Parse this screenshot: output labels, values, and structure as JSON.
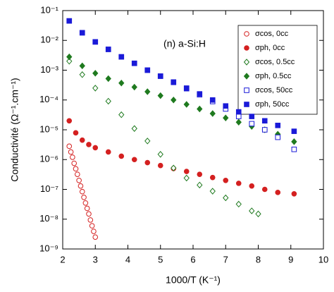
{
  "chart_data": {
    "type": "scatter",
    "annotation": "(n) a-Si:H",
    "x_label": "1000/T (K⁻¹)",
    "y_label": "Conductivité (Ω⁻¹.cm⁻¹)",
    "log_y": true,
    "legend": "upper right",
    "xlim": [
      2,
      10
    ],
    "xticks": [
      2,
      3,
      4,
      5,
      6,
      7,
      8,
      9,
      10
    ],
    "ylim": [
      1e-09,
      0.1
    ],
    "yticks": [
      {
        "value": 0.1,
        "label": "10⁻¹"
      },
      {
        "value": 0.01,
        "label": "10⁻²"
      },
      {
        "value": 0.001,
        "label": "10⁻³"
      },
      {
        "value": 0.0001,
        "label": "10⁻⁴"
      },
      {
        "value": 1e-05,
        "label": "10⁻⁵"
      },
      {
        "value": 1e-06,
        "label": "10⁻⁶"
      },
      {
        "value": 1e-07,
        "label": "10⁻⁷"
      },
      {
        "value": 1e-08,
        "label": "10⁻⁸"
      },
      {
        "value": 1e-09,
        "label": "10⁻⁹"
      }
    ],
    "series": [
      {
        "name": "σcos, 0cc",
        "color": "#d42020",
        "marker": "circle",
        "filled": false,
        "x": [
          2.2,
          2.25,
          2.3,
          2.35,
          2.4,
          2.45,
          2.5,
          2.55,
          2.6,
          2.65,
          2.7,
          2.75,
          2.8,
          2.85,
          2.9,
          2.95,
          3.0
        ],
        "values": [
          2.8e-06,
          1.8e-06,
          1.2e-06,
          7.5e-07,
          4.9e-07,
          3.2e-07,
          2e-07,
          1.3e-07,
          8.4e-08,
          5.4e-08,
          3.5e-08,
          2.3e-08,
          1.5e-08,
          9.4e-09,
          6e-09,
          3.9e-09,
          2.5e-09
        ]
      },
      {
        "name": "σph, 0cc",
        "color": "#d42020",
        "marker": "circle",
        "filled": true,
        "x": [
          2.2,
          2.4,
          2.6,
          2.8,
          3.0,
          3.4,
          3.8,
          4.2,
          4.6,
          5.0,
          5.4,
          5.8,
          6.2,
          6.6,
          7.0,
          7.4,
          7.8,
          8.2,
          8.6,
          9.1
        ],
        "values": [
          2e-05,
          7.9e-06,
          4.5e-06,
          3.2e-06,
          2.5e-06,
          1.8e-06,
          1.3e-06,
          1e-06,
          7.9e-07,
          6.3e-07,
          5e-07,
          4e-07,
          3.2e-07,
          2.5e-07,
          2e-07,
          1.6e-07,
          1.3e-07,
          1e-07,
          7.9e-08,
          7.1e-08
        ]
      },
      {
        "name": "σcos, 0.5cc",
        "color": "#1f7a1f",
        "marker": "diamond",
        "filled": false,
        "x": [
          2.2,
          2.6,
          3.0,
          3.4,
          3.8,
          4.2,
          4.6,
          5.0,
          5.4,
          5.8,
          6.2,
          6.6,
          7.0,
          7.4,
          7.8,
          8.0
        ],
        "values": [
          0.002,
          0.00071,
          0.00025,
          9.1e-05,
          3.2e-05,
          1.1e-05,
          4.2e-06,
          1.5e-06,
          5.2e-07,
          2.4e-07,
          1.4e-07,
          8.7e-08,
          5.2e-08,
          3.2e-08,
          1.9e-08,
          1.5e-08
        ]
      },
      {
        "name": "σph, 0.5cc",
        "color": "#1f7a1f",
        "marker": "diamond",
        "filled": true,
        "x": [
          2.2,
          2.6,
          3.0,
          3.4,
          3.8,
          4.2,
          4.6,
          5.0,
          5.4,
          5.8,
          6.2,
          6.6,
          7.0,
          7.4,
          7.8,
          8.2,
          8.6,
          9.1
        ],
        "values": [
          0.0028,
          0.0014,
          0.00079,
          0.00052,
          0.00037,
          0.00027,
          0.00019,
          0.00014,
          0.0001,
          7.1e-05,
          5e-05,
          3.5e-05,
          2.5e-05,
          1.8e-05,
          1.3e-05,
          1e-05,
          7.1e-06,
          4e-06
        ]
      },
      {
        "name": "σcos, 50cc",
        "color": "#1a1ad8",
        "marker": "square",
        "filled": false,
        "x": [
          2.2,
          2.6,
          3.0,
          3.4,
          3.8,
          4.2,
          4.6,
          5.0,
          5.4,
          5.8,
          6.2,
          6.6,
          7.0,
          7.4,
          7.8,
          8.2,
          8.6,
          9.1
        ],
        "values": [
          0.045,
          0.018,
          0.0089,
          0.005,
          0.0028,
          0.0017,
          0.001,
          0.00063,
          0.00039,
          0.00024,
          0.00015,
          8.9e-05,
          5e-05,
          2.8e-05,
          1.6e-05,
          1e-05,
          5.6e-06,
          2.2e-06
        ]
      },
      {
        "name": "σph, 50cc",
        "color": "#1a1ad8",
        "marker": "square",
        "filled": true,
        "x": [
          2.2,
          2.6,
          3.0,
          3.4,
          3.8,
          4.2,
          4.6,
          5.0,
          5.4,
          5.8,
          6.2,
          6.6,
          7.0,
          7.4,
          7.8,
          8.2,
          8.6,
          9.1
        ],
        "values": [
          0.045,
          0.018,
          0.0089,
          0.005,
          0.0028,
          0.0017,
          0.001,
          0.00063,
          0.0004,
          0.00025,
          0.00016,
          0.0001,
          6.3e-05,
          4e-05,
          2.8e-05,
          2e-05,
          1.4e-05,
          8.9e-06
        ]
      }
    ]
  }
}
